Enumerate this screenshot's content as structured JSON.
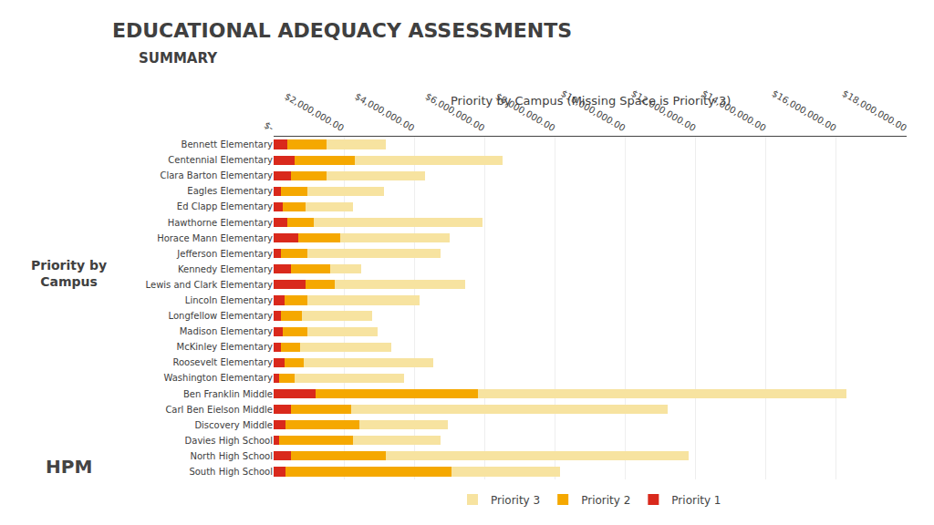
{
  "chart_data": {
    "type": "bar",
    "orientation": "horizontal",
    "stacked": true,
    "title": "EDUCATIONAL ADEQUACY ASSESSMENTS",
    "subtitle": "SUMMARY",
    "annotations": [
      "Priority by Campus (Missing Space is Priority 3)",
      "Priority by\nCampus",
      "HPM"
    ],
    "categories": [
      "Bennett Elementary",
      "Centennial Elementary",
      "Clara Barton Elementary",
      "Eagles Elementary",
      "Ed Clapp Elementary",
      "Hawthorne Elementary",
      "Horace Mann Elementary",
      "Jefferson Elementary",
      "Kennedy Elementary",
      "Lewis and Clark Elementary",
      "Lincoln Elementary",
      "Longfellow Elementary",
      "Madison Elementary",
      "McKinley Elementary",
      "Roosevelt Elementary",
      "Washington Elementary",
      "Ben Franklin Middle",
      "Carl Ben Eielson Middle",
      "Discovery Middle",
      "Davies High School",
      "North High School",
      "South High School"
    ],
    "series": [
      {
        "name": "Priority 1",
        "color": "#d9291c",
        "values": [
          400000,
          600000,
          500000,
          200000,
          250000,
          400000,
          700000,
          200000,
          500000,
          900000,
          300000,
          200000,
          250000,
          200000,
          300000,
          150000,
          1200000,
          500000,
          350000,
          150000,
          500000,
          350000
        ]
      },
      {
        "name": "Priority 2",
        "color": "#f5a800",
        "values": [
          1100000,
          1700000,
          1000000,
          750000,
          650000,
          750000,
          1200000,
          750000,
          1100000,
          850000,
          650000,
          600000,
          700000,
          550000,
          550000,
          450000,
          4600000,
          1700000,
          2100000,
          2100000,
          2700000,
          4700000
        ]
      },
      {
        "name": "Priority 3",
        "color": "#f7e3a0",
        "values": [
          1700000,
          4200000,
          2800000,
          2200000,
          1350000,
          4800000,
          3100000,
          3800000,
          900000,
          3700000,
          3200000,
          2000000,
          2000000,
          2600000,
          3700000,
          3100000,
          10500000,
          9000000,
          2500000,
          2500000,
          8600000,
          3100000
        ]
      }
    ],
    "xlim": [
      0,
      18000000
    ],
    "xticks": [
      {
        "value": 0,
        "label": "$-"
      },
      {
        "value": 2000000,
        "label": "$2,000,000.00"
      },
      {
        "value": 4000000,
        "label": "$4,000,000.00"
      },
      {
        "value": 6000000,
        "label": "$6,000,000.00"
      },
      {
        "value": 8000000,
        "label": "$8,000,000.00"
      },
      {
        "value": 10000000,
        "label": "$10,000,000.00"
      },
      {
        "value": 12000000,
        "label": "$12,000,000.00"
      },
      {
        "value": 14000000,
        "label": "$14,000,000.00"
      },
      {
        "value": 16000000,
        "label": "$16,000,000.00"
      },
      {
        "value": 18000000,
        "label": "$18,000,000.00"
      }
    ],
    "grid": true,
    "legend": "bottom"
  }
}
